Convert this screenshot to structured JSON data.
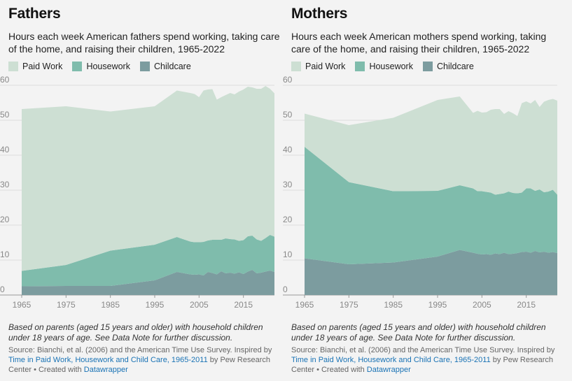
{
  "colors": {
    "paid_work": "#cddfd3",
    "housework": "#7fbcac",
    "childcare": "#7c9c9f",
    "grid": "#dedede",
    "link": "#1a73b5"
  },
  "legend": [
    "Paid Work",
    "Housework",
    "Childcare"
  ],
  "footer": {
    "note": "Based on parents (aged 15 years and older) with household children under 18 years of age. See Data Note for further discussion.",
    "source_prefix": "Source: Bianchi, et al. (2006) and the American Time Use Survey. Inspired by ",
    "source_link": "Time in Paid Work, Housework and Child Care, 1965-2011",
    "source_middle": " by Pew Research Center • Created with ",
    "datawrapper": "Datawrapper"
  },
  "chart_data": [
    {
      "type": "area",
      "stacked": true,
      "title": "Fathers",
      "subtitle": "Hours each week American fathers spend working, taking care of the home, and raising their children, 1965-2022",
      "xlim": [
        1965,
        2022
      ],
      "ylim": [
        0,
        60
      ],
      "xticks": [
        1965,
        1975,
        1985,
        1995,
        2005,
        2015
      ],
      "yticks": [
        0,
        10,
        20,
        30,
        40,
        50,
        60
      ],
      "x": [
        1965,
        1975,
        1985,
        1995,
        2000,
        2003,
        2004,
        2005,
        2006,
        2007,
        2008,
        2009,
        2010,
        2011,
        2012,
        2013,
        2014,
        2015,
        2016,
        2017,
        2018,
        2019,
        2020,
        2021,
        2022
      ],
      "series": [
        {
          "name": "Childcare",
          "values": [
            2.5,
            2.6,
            2.6,
            4.2,
            6.6,
            5.9,
            5.8,
            5.9,
            5.6,
            6.6,
            6.3,
            5.9,
            6.8,
            6.2,
            6.4,
            6.1,
            6.5,
            6.0,
            6.7,
            7.2,
            6.2,
            6.4,
            6.7,
            7.0,
            6.6
          ]
        },
        {
          "name": "Housework",
          "values": [
            4.4,
            6.0,
            10.1,
            10.2,
            10.0,
            9.4,
            9.3,
            9.2,
            9.6,
            9.0,
            9.5,
            9.9,
            9.0,
            10.0,
            9.6,
            9.8,
            9.0,
            9.7,
            10.1,
            9.8,
            9.7,
            9.1,
            9.6,
            10.2,
            10.1
          ]
        },
        {
          "name": "Paid Work",
          "values": [
            46.3,
            45.4,
            39.8,
            39.6,
            41.9,
            42.5,
            42.4,
            41.5,
            43.3,
            43.2,
            43.1,
            40.1,
            40.8,
            41.0,
            41.8,
            41.5,
            42.7,
            43.1,
            42.8,
            42.4,
            43.1,
            43.5,
            43.5,
            41.8,
            41.0
          ]
        }
      ]
    },
    {
      "type": "area",
      "stacked": true,
      "title": "Mothers",
      "subtitle": "Hours each week American mothers spend working, taking care of the home, and raising their children, 1965-2022",
      "xlim": [
        1965,
        2022
      ],
      "ylim": [
        0,
        60
      ],
      "xticks": [
        1965,
        1975,
        1985,
        1995,
        2005,
        2015
      ],
      "yticks": [
        0,
        10,
        20,
        30,
        40,
        50,
        60
      ],
      "x": [
        1965,
        1975,
        1985,
        1995,
        2000,
        2003,
        2004,
        2005,
        2006,
        2007,
        2008,
        2009,
        2010,
        2011,
        2012,
        2013,
        2014,
        2015,
        2016,
        2017,
        2018,
        2019,
        2020,
        2021,
        2022
      ],
      "series": [
        {
          "name": "Childcare",
          "values": [
            10.5,
            8.8,
            9.3,
            11.0,
            12.9,
            12.1,
            11.8,
            11.6,
            11.7,
            11.5,
            11.9,
            11.7,
            12.1,
            11.7,
            11.8,
            12.0,
            12.3,
            12.4,
            12.1,
            12.6,
            12.2,
            12.4,
            12.1,
            12.3,
            12.0
          ]
        },
        {
          "name": "Housework",
          "values": [
            31.9,
            23.5,
            20.4,
            18.8,
            18.5,
            18.4,
            17.9,
            18.1,
            17.8,
            17.8,
            16.8,
            17.2,
            17.0,
            17.9,
            17.4,
            17.1,
            17.0,
            18.1,
            18.4,
            17.2,
            18.0,
            17.0,
            17.5,
            17.8,
            16.7
          ]
        },
        {
          "name": "Paid Work",
          "values": [
            9.5,
            16.3,
            21.0,
            26.0,
            25.4,
            21.6,
            23.0,
            22.5,
            22.8,
            23.7,
            24.5,
            24.3,
            22.7,
            23.0,
            22.8,
            22.1,
            25.6,
            24.9,
            24.3,
            26.0,
            23.6,
            25.9,
            26.2,
            26.0,
            26.9
          ]
        }
      ]
    }
  ]
}
